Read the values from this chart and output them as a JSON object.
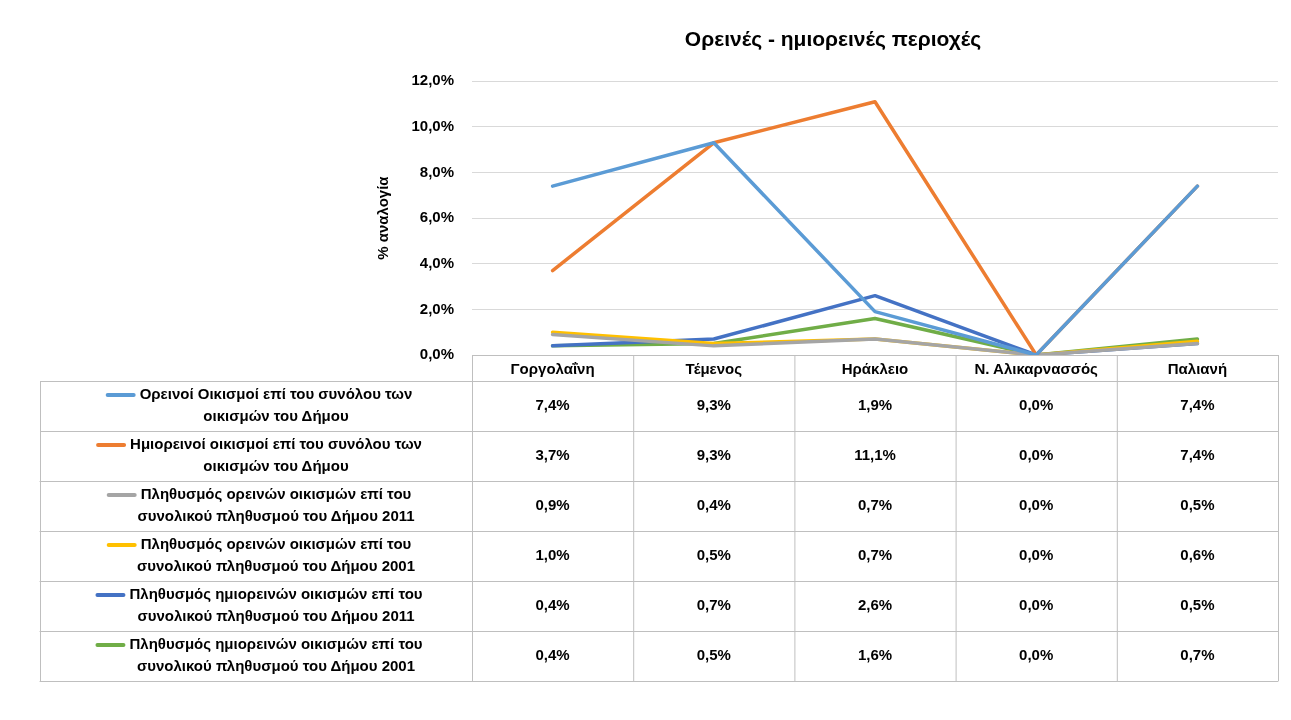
{
  "chart_data": {
    "type": "line",
    "title": "Ορεινές - ημιορεινές περιοχές",
    "ylabel": "% αναλογία",
    "categories": [
      "Γοργολαΐνη",
      "Τέμενος",
      "Ηράκλειο",
      "Ν. Αλικαρνασσός",
      "Παλιανή"
    ],
    "series": [
      {
        "name": "Ορεινοί Οικισμοί επί του συνόλου των οικισμών του Δήμου",
        "color": "#5b9bd5",
        "values": [
          7.4,
          9.3,
          1.9,
          0.0,
          7.4
        ],
        "value_labels": [
          "7,4%",
          "9,3%",
          "1,9%",
          "0,0%",
          "7,4%"
        ]
      },
      {
        "name": "Ημιορεινοί οικισμοί επί του συνόλου των οικισμών του Δήμου",
        "color": "#ed7d31",
        "values": [
          3.7,
          9.3,
          11.1,
          0.0,
          7.4
        ],
        "value_labels": [
          "3,7%",
          "9,3%",
          "11,1%",
          "0,0%",
          "7,4%"
        ]
      },
      {
        "name": "Πληθυσμός ορεινών οικισμών επί του συνολικού πληθυσμού του Δήμου 2011",
        "color": "#a5a5a5",
        "values": [
          0.9,
          0.4,
          0.7,
          0.0,
          0.5
        ],
        "value_labels": [
          "0,9%",
          "0,4%",
          "0,7%",
          "0,0%",
          "0,5%"
        ]
      },
      {
        "name": "Πληθυσμός ορεινών οικισμών επί του συνολικού πληθυσμού του Δήμου 2001",
        "color": "#ffc000",
        "values": [
          1.0,
          0.5,
          0.7,
          0.0,
          0.6
        ],
        "value_labels": [
          "1,0%",
          "0,5%",
          "0,7%",
          "0,0%",
          "0,6%"
        ]
      },
      {
        "name": "Πληθυσμός ημιορεινών οικισμών επί του συνολικού πληθυσμού του Δήμου 2011",
        "color": "#4472c4",
        "values": [
          0.4,
          0.7,
          2.6,
          0.0,
          0.5
        ],
        "value_labels": [
          "0,4%",
          "0,7%",
          "2,6%",
          "0,0%",
          "0,5%"
        ]
      },
      {
        "name": "Πληθυσμός ημιορεινών οικισμών επί του συνολικού πληθυσμού του Δήμου 2001",
        "color": "#70ad47",
        "values": [
          0.4,
          0.5,
          1.6,
          0.0,
          0.7
        ],
        "value_labels": [
          "0,4%",
          "0,5%",
          "1,6%",
          "0,0%",
          "0,7%"
        ]
      }
    ],
    "ylim": [
      0,
      12
    ],
    "yticks": [
      {
        "value": 0,
        "label": "0,0%"
      },
      {
        "value": 2,
        "label": "2,0%"
      },
      {
        "value": 4,
        "label": "4,0%"
      },
      {
        "value": 6,
        "label": "6,0%"
      },
      {
        "value": 8,
        "label": "8,0%"
      },
      {
        "value": 10,
        "label": "10,0%"
      },
      {
        "value": 12,
        "label": "12,0%"
      }
    ],
    "grid": "y",
    "legend": "bottom",
    "marker": "none",
    "line_style": "solid"
  }
}
